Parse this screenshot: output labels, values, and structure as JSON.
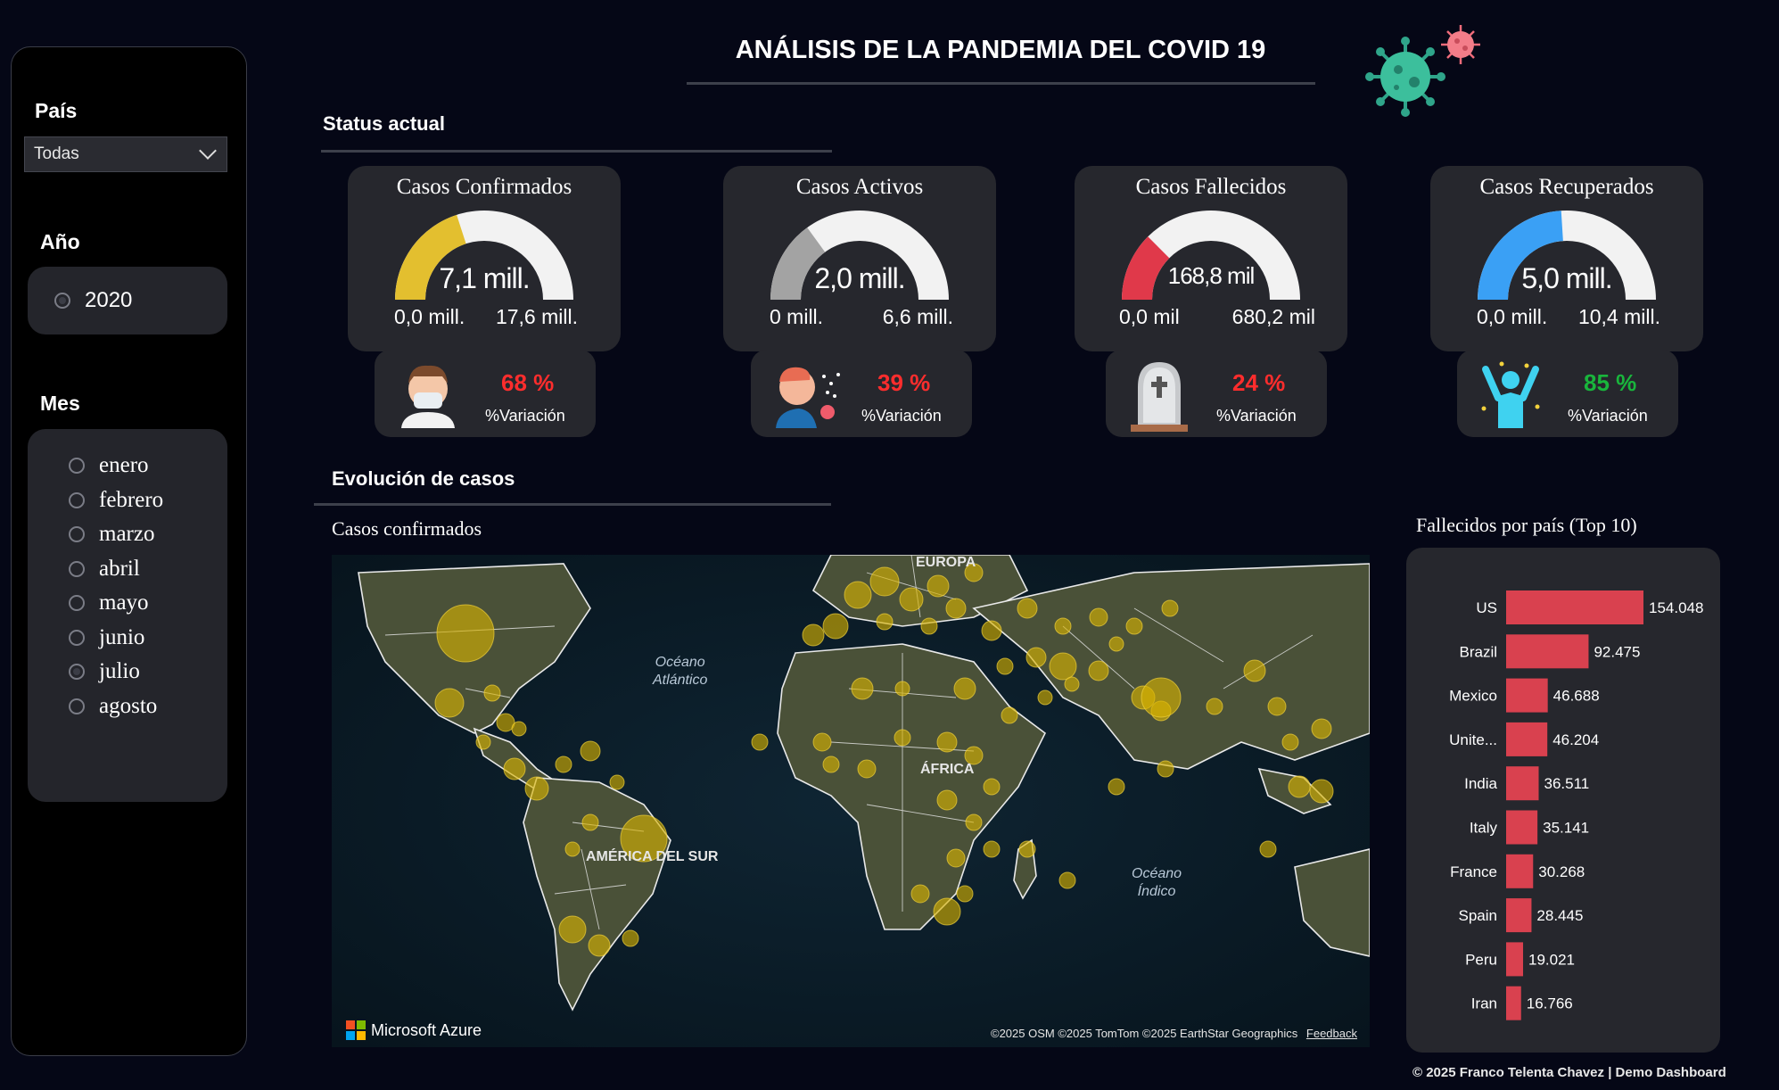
{
  "title": "ANÁLISIS DE LA PANDEMIA DEL COVID 19",
  "sidebar": {
    "pais_label": "País",
    "pais_value": "Todas",
    "anio_label": "Año",
    "anio_options": [
      "2020"
    ],
    "mes_label": "Mes",
    "months": [
      "enero",
      "febrero",
      "marzo",
      "abril",
      "mayo",
      "junio",
      "julio",
      "agosto"
    ],
    "selected_month": "julio"
  },
  "status": {
    "section_title": "Status actual",
    "kpis": [
      {
        "title": "Casos Confirmados",
        "value": "7,1 mill.",
        "min": "0,0 mill.",
        "max": "17,6 mill.",
        "fraction": 0.4,
        "color": "#e3bf2f",
        "variation": "68 %",
        "variation_label": "%Variación",
        "variation_color": "#ff2d2d",
        "icon": "masked-person-icon"
      },
      {
        "title": "Casos Activos",
        "value": "2,0 mill.",
        "min": "0 mill.",
        "max": "6,6 mill.",
        "fraction": 0.3,
        "color": "#a3a3a3",
        "variation": "39 %",
        "variation_label": "%Variación",
        "variation_color": "#ff2d2d",
        "icon": "sneezing-person-icon"
      },
      {
        "title": "Casos Fallecidos",
        "value": "168,8 mil",
        "min": "0,0 mil",
        "max": "680,2 mil",
        "fraction": 0.25,
        "color": "#e0394a",
        "variation": "24 %",
        "variation_label": "%Variación",
        "variation_color": "#ff2d2d",
        "icon": "tombstone-icon"
      },
      {
        "title": "Casos Recuperados",
        "value": "5,0 mill.",
        "min": "0,0 mill.",
        "max": "10,4 mill.",
        "fraction": 0.48,
        "color": "#3aa0f5",
        "variation": "85 %",
        "variation_label": "%Variación",
        "variation_color": "#19b53c",
        "icon": "celebrating-person-icon"
      }
    ]
  },
  "evolution": {
    "section_title": "Evolución de casos",
    "map_title": "Casos confirmados",
    "map_labels": {
      "atlantic": "Océano\nAtlántico",
      "indian": "Océano\nÍndico",
      "europe": "EUROPA",
      "africa": "ÁFRICA",
      "south_america": "AMÉRICA DEL SUR"
    },
    "map_brand": "Microsoft Azure",
    "map_attribution": "©2025 OSM  ©2025 TomTom  ©2025 EarthStar Geographics",
    "map_feedback": "Feedback"
  },
  "chart_data": {
    "type": "bar",
    "orientation": "horizontal",
    "title": "Fallecidos por país  (Top 10)",
    "categories": [
      "US",
      "Brazil",
      "Mexico",
      "Unite...",
      "India",
      "Italy",
      "France",
      "Spain",
      "Peru",
      "Iran"
    ],
    "values": [
      154048,
      92475,
      46688,
      46204,
      36511,
      35141,
      30268,
      28445,
      19021,
      16766
    ],
    "value_labels": [
      "154.048",
      "92.475",
      "46.688",
      "46.204",
      "36.511",
      "35.141",
      "30.268",
      "28.445",
      "19.021",
      "16.766"
    ],
    "bar_color": "#d9414f"
  },
  "footer": "© 2025 Franco Telenta Chavez | Demo Dashboard"
}
